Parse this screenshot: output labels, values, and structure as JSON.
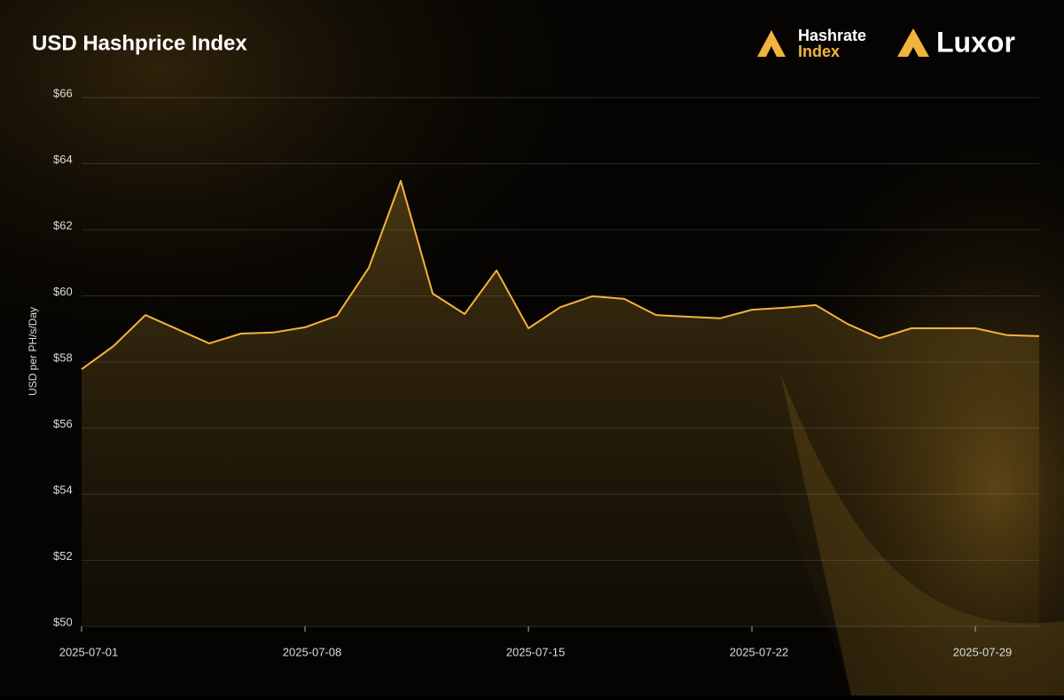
{
  "branding": {
    "hashrate_line1": "Hashrate",
    "hashrate_line2": "Index",
    "luxor": "Luxor"
  },
  "chart_data": {
    "type": "area",
    "title": "USD Hashprice Index",
    "y_label": "USD per PH/s/Day",
    "x": [
      "2025-07-01",
      "2025-07-02",
      "2025-07-03",
      "2025-07-04",
      "2025-07-05",
      "2025-07-06",
      "2025-07-07",
      "2025-07-08",
      "2025-07-09",
      "2025-07-10",
      "2025-07-11",
      "2025-07-12",
      "2025-07-13",
      "2025-07-14",
      "2025-07-15",
      "2025-07-16",
      "2025-07-17",
      "2025-07-18",
      "2025-07-19",
      "2025-07-20",
      "2025-07-21",
      "2025-07-22",
      "2025-07-23",
      "2025-07-24",
      "2025-07-25",
      "2025-07-26",
      "2025-07-27",
      "2025-07-28",
      "2025-07-29",
      "2025-07-30",
      "2025-07-31"
    ],
    "series": [
      {
        "name": "USD Hashprice",
        "color": "#f2b33d",
        "values": [
          57.78,
          58.48,
          59.42,
          58.99,
          58.56,
          58.86,
          58.89,
          59.05,
          59.4,
          60.85,
          63.48,
          60.07,
          59.45,
          60.77,
          59.02,
          59.66,
          59.99,
          59.91,
          59.42,
          59.37,
          59.32,
          59.58,
          59.64,
          59.72,
          59.15,
          58.72,
          59.02,
          59.02,
          59.02,
          58.81,
          58.78
        ]
      }
    ],
    "xlim": [
      "2025-07-01",
      "2025-07-31"
    ],
    "xticks": [
      "2025-07-01",
      "2025-07-08",
      "2025-07-15",
      "2025-07-22",
      "2025-07-29"
    ],
    "ylim": [
      50,
      66
    ],
    "yticks": [
      {
        "value": 50,
        "label": "$50"
      },
      {
        "value": 52,
        "label": "$52"
      },
      {
        "value": 54,
        "label": "$54"
      },
      {
        "value": 56,
        "label": "$56"
      },
      {
        "value": 58,
        "label": "$58"
      },
      {
        "value": 60,
        "label": "$60"
      },
      {
        "value": 62,
        "label": "$62"
      },
      {
        "value": 64,
        "label": "$64"
      },
      {
        "value": 66,
        "label": "$66"
      }
    ],
    "grid": true
  }
}
